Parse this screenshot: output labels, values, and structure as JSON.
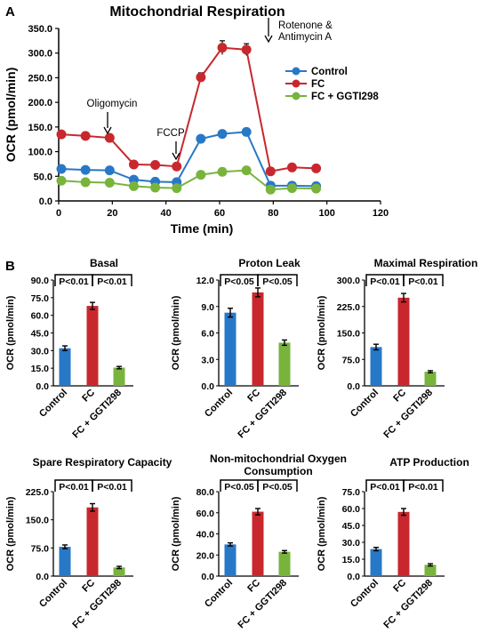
{
  "panel_a_label": "A",
  "panel_b_label": "B",
  "colors": {
    "control": "#2878c8",
    "fc": "#c8282d",
    "ggti": "#78b43c"
  },
  "chart_data": [
    {
      "type": "line",
      "title": "Mitochondrial Respiration",
      "xlabel": "Time (min)",
      "ylabel": "OCR (pmol/min)",
      "xlim": [
        0,
        120
      ],
      "ylim": [
        0,
        350
      ],
      "xticks": [
        "0",
        "20",
        "40",
        "60",
        "80",
        "100",
        "120"
      ],
      "yticks": [
        "0.0",
        "50.0",
        "100.0",
        "150.0",
        "200.0",
        "250.0",
        "300.0",
        "350.0"
      ],
      "x": [
        1,
        10,
        19,
        28,
        36,
        44,
        53,
        61,
        70,
        79,
        87,
        96
      ],
      "series": [
        {
          "name": "Control",
          "color": "#2878c8",
          "values": [
            65,
            63,
            62,
            43,
            39,
            38,
            126,
            136,
            140,
            31,
            31,
            30
          ],
          "errors": [
            4,
            3,
            3,
            3,
            3,
            3,
            5,
            5,
            5,
            3,
            3,
            3
          ]
        },
        {
          "name": "FC",
          "color": "#c8282d",
          "values": [
            135,
            132,
            128,
            74,
            73,
            70,
            251,
            311,
            307,
            60,
            68,
            66
          ],
          "errors": [
            5,
            4,
            5,
            4,
            4,
            4,
            9,
            14,
            12,
            6,
            5,
            4
          ]
        },
        {
          "name": "FC + GGTI298",
          "color": "#78b43c",
          "values": [
            41,
            38,
            37,
            30,
            27,
            26,
            53,
            59,
            62,
            23,
            26,
            25
          ],
          "errors": [
            3,
            3,
            3,
            3,
            3,
            3,
            4,
            4,
            4,
            4,
            3,
            3
          ]
        }
      ],
      "annotations": [
        {
          "text": "Oligomycin",
          "x": 19
        },
        {
          "text": "FCCP",
          "x": 44
        },
        {
          "text": "Rotenone &",
          "text2": "Antimycin A",
          "x": 70
        }
      ],
      "legend": "top-right"
    },
    {
      "type": "bar",
      "title": "Basal",
      "title2": "",
      "ylabel": "OCR (pmol/min)",
      "ylim": [
        0,
        90
      ],
      "yticks": [
        "0.0",
        "15.0",
        "30.0",
        "45.0",
        "60.0",
        "75.0",
        "90.0"
      ],
      "categories": [
        "Control",
        "FC",
        "FC + GGTI298"
      ],
      "values": [
        32,
        68,
        15.5
      ],
      "errors": [
        2,
        3,
        1
      ],
      "sig": [
        "P<0.01",
        "P<0.01"
      ]
    },
    {
      "type": "bar",
      "title": "Proton Leak",
      "title2": "",
      "ylabel": "OCR (pmol/min)",
      "ylim": [
        0,
        12
      ],
      "yticks": [
        "0.0",
        "3.0",
        "6.0",
        "9.0",
        "12.0"
      ],
      "categories": [
        "Control",
        "FC",
        "FC + GGTI298"
      ],
      "values": [
        8.3,
        10.6,
        4.9
      ],
      "errors": [
        0.5,
        0.5,
        0.3
      ],
      "sig": [
        "P<0.05",
        "P<0.05"
      ]
    },
    {
      "type": "bar",
      "title": "Maximal Respiration",
      "title2": "",
      "ylabel": "OCR (pmol/min)",
      "ylim": [
        0,
        300
      ],
      "yticks": [
        "0.0",
        "75.0",
        "150.0",
        "225.0",
        "300.0"
      ],
      "categories": [
        "Control",
        "FC",
        "FC + GGTI298"
      ],
      "values": [
        110,
        250,
        40
      ],
      "errors": [
        8,
        12,
        3
      ],
      "sig": [
        "P<0.01",
        "P<0.01"
      ]
    },
    {
      "type": "bar",
      "title": "Spare Respiratory Capacity",
      "title2": "",
      "ylabel": "OCR (pmol/min)",
      "ylim": [
        0,
        225
      ],
      "yticks": [
        "0.0",
        "75.0",
        "150.0",
        "225.0"
      ],
      "categories": [
        "Control",
        "FC",
        "FC + GGTI298"
      ],
      "values": [
        78,
        183,
        23
      ],
      "errors": [
        5,
        10,
        3
      ],
      "sig": [
        "P<0.01",
        "P<0.01"
      ]
    },
    {
      "type": "bar",
      "title": "Non-mitochondrial Oxygen",
      "title2": "Consumption",
      "ylabel": "OCR (pmol/min)",
      "ylim": [
        0,
        80
      ],
      "yticks": [
        "0.0",
        "20.0",
        "40.0",
        "60.0",
        "80.0"
      ],
      "categories": [
        "Control",
        "FC",
        "FC + GGTI298"
      ],
      "values": [
        30,
        61,
        23
      ],
      "errors": [
        1.5,
        3,
        1.2
      ],
      "sig": [
        "P<0.05",
        "P<0.05"
      ]
    },
    {
      "type": "bar",
      "title": "ATP Production",
      "title2": "",
      "ylabel": "OCR (pmol/min)",
      "ylim": [
        0,
        75
      ],
      "yticks": [
        "0.0",
        "15.0",
        "30.0",
        "45.0",
        "60.0",
        "75.0"
      ],
      "categories": [
        "Control",
        "FC",
        "FC + GGTI298"
      ],
      "values": [
        24,
        57,
        10
      ],
      "errors": [
        1.5,
        3,
        1
      ],
      "sig": [
        "P<0.01",
        "P<0.01"
      ]
    }
  ]
}
